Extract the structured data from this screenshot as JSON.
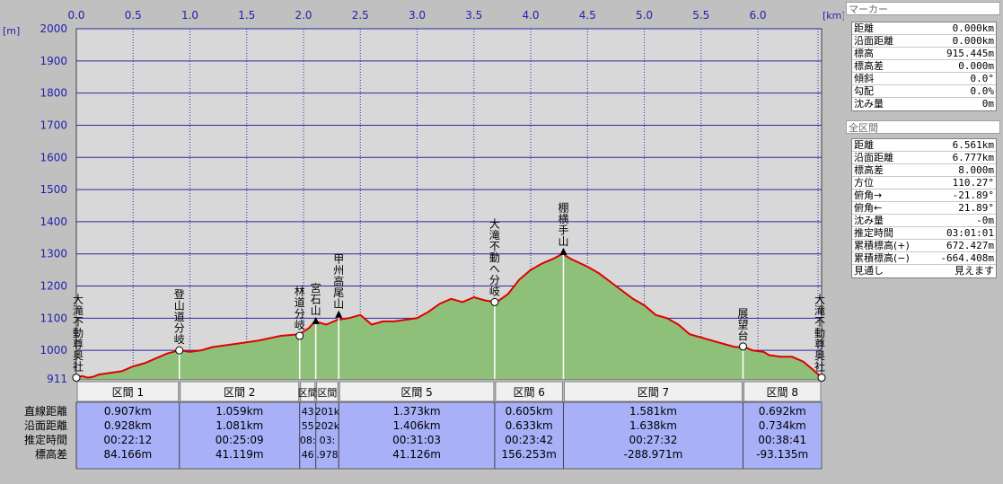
{
  "chart_data": {
    "type": "area",
    "x_unit": "[km]",
    "y_unit": "[m]",
    "xlim": [
      0,
      6.561
    ],
    "ylim": [
      911,
      2000
    ],
    "x_ticks": [
      "0.0",
      "0.5",
      "1.0",
      "1.5",
      "2.0",
      "2.5",
      "3.0",
      "3.5",
      "4.0",
      "4.5",
      "5.0",
      "5.5",
      "6.0"
    ],
    "y_ticks": [
      "2000",
      "1900",
      "1800",
      "1700",
      "1600",
      "1500",
      "1400",
      "1300",
      "1200",
      "1100",
      "1000",
      "911"
    ],
    "profile": [
      [
        0.0,
        915
      ],
      [
        0.05,
        920
      ],
      [
        0.1,
        915
      ],
      [
        0.15,
        918
      ],
      [
        0.2,
        925
      ],
      [
        0.3,
        930
      ],
      [
        0.4,
        935
      ],
      [
        0.5,
        950
      ],
      [
        0.6,
        960
      ],
      [
        0.7,
        975
      ],
      [
        0.8,
        990
      ],
      [
        0.907,
        1000
      ],
      [
        1.0,
        995
      ],
      [
        1.1,
        1000
      ],
      [
        1.2,
        1010
      ],
      [
        1.4,
        1020
      ],
      [
        1.6,
        1030
      ],
      [
        1.8,
        1045
      ],
      [
        1.966,
        1050
      ],
      [
        2.05,
        1070
      ],
      [
        2.1,
        1090
      ],
      [
        2.2,
        1080
      ],
      [
        2.3,
        1095
      ],
      [
        2.4,
        1100
      ],
      [
        2.5,
        1110
      ],
      [
        2.6,
        1080
      ],
      [
        2.7,
        1090
      ],
      [
        2.8,
        1090
      ],
      [
        3.0,
        1100
      ],
      [
        3.1,
        1120
      ],
      [
        3.2,
        1145
      ],
      [
        3.3,
        1160
      ],
      [
        3.4,
        1150
      ],
      [
        3.5,
        1165
      ],
      [
        3.6,
        1155
      ],
      [
        3.7,
        1150
      ],
      [
        3.8,
        1175
      ],
      [
        3.9,
        1220
      ],
      [
        4.0,
        1250
      ],
      [
        4.1,
        1270
      ],
      [
        4.2,
        1285
      ],
      [
        4.28,
        1300
      ],
      [
        4.35,
        1285
      ],
      [
        4.5,
        1260
      ],
      [
        4.6,
        1240
      ],
      [
        4.75,
        1200
      ],
      [
        4.9,
        1160
      ],
      [
        5.0,
        1140
      ],
      [
        5.1,
        1110
      ],
      [
        5.2,
        1100
      ],
      [
        5.3,
        1080
      ],
      [
        5.4,
        1050
      ],
      [
        5.5,
        1040
      ],
      [
        5.6,
        1030
      ],
      [
        5.7,
        1020
      ],
      [
        5.8,
        1010
      ],
      [
        5.882,
        1010
      ],
      [
        5.95,
        1000
      ],
      [
        6.05,
        995
      ],
      [
        6.1,
        985
      ],
      [
        6.2,
        980
      ],
      [
        6.3,
        980
      ],
      [
        6.4,
        965
      ],
      [
        6.5,
        935
      ],
      [
        6.561,
        915
      ]
    ],
    "waypoints": [
      {
        "x": 0.0,
        "y": 915,
        "label": "大滝不動尊奥社",
        "marker": "circle"
      },
      {
        "x": 0.907,
        "y": 1000,
        "label": "登山道分岐",
        "marker": "circle"
      },
      {
        "x": 1.966,
        "y": 1045,
        "label": "林道分岐",
        "marker": "circle"
      },
      {
        "x": 2.108,
        "y": 1090,
        "label": "宮石山",
        "marker": "triangle"
      },
      {
        "x": 2.31,
        "y": 1110,
        "label": "甲州高尾山",
        "marker": "triangle"
      },
      {
        "x": 3.683,
        "y": 1150,
        "label": "大滝不動へ分岐",
        "marker": "circle"
      },
      {
        "x": 4.288,
        "y": 1305,
        "label": "棚横手山",
        "marker": "triangle"
      },
      {
        "x": 5.869,
        "y": 1012,
        "label": "展望台",
        "marker": "circle"
      },
      {
        "x": 6.561,
        "y": 915,
        "label": "大滝不動尊奥社",
        "marker": "circle"
      }
    ],
    "table_row_labels": [
      "直線距離",
      "沿面距離",
      "推定時間",
      "標高差"
    ],
    "segments": [
      {
        "x0": 0.0,
        "x1": 0.907,
        "name": "区間 1",
        "dist": "0.907km",
        "surf": "0.928km",
        "time": "00:22:12",
        "diff": "84.166m"
      },
      {
        "x0": 0.907,
        "x1": 1.966,
        "name": "区間 2",
        "dist": "1.059km",
        "surf": "1.081km",
        "time": "00:25:09",
        "diff": "41.119m"
      },
      {
        "x0": 1.966,
        "x1": 2.108,
        "name": "区間",
        "dist": "43",
        "surf": "55",
        "time": "08:",
        "diff": "46"
      },
      {
        "x0": 2.108,
        "x1": 2.31,
        "name": "区間",
        "dist": "201k",
        "surf": "202k",
        "time": "03:",
        "diff": ".978"
      },
      {
        "x0": 2.31,
        "x1": 3.683,
        "name": "区間 5",
        "dist": "1.373km",
        "surf": "1.406km",
        "time": "00:31:03",
        "diff": "41.126m"
      },
      {
        "x0": 3.683,
        "x1": 4.288,
        "name": "区間 6",
        "dist": "0.605km",
        "surf": "0.633km",
        "time": "00:23:42",
        "diff": "156.253m"
      },
      {
        "x0": 4.288,
        "x1": 5.869,
        "name": "区間 7",
        "dist": "1.581km",
        "surf": "1.638km",
        "time": "00:27:32",
        "diff": "-288.971m"
      },
      {
        "x0": 5.869,
        "x1": 6.561,
        "name": "区間 8",
        "dist": "0.692km",
        "surf": "0.734km",
        "time": "00:38:41",
        "diff": "-93.135m"
      }
    ],
    "colors": {
      "line": "#e00000",
      "fill": "#8fc07a",
      "plot_bg": "#d8d8d8",
      "grid": "#2a2aa8",
      "table": "#a8b0f8",
      "axis_text": "#2222aa"
    }
  },
  "marker_panel": {
    "title": "マーカー",
    "rows": [
      {
        "label": "距離",
        "value": "0.000km"
      },
      {
        "label": "沿面距離",
        "value": "0.000km"
      },
      {
        "label": "標高",
        "value": "915.445m"
      },
      {
        "label": "標高差",
        "value": "0.000m"
      },
      {
        "label": "傾斜",
        "value": "0.0°"
      },
      {
        "label": "勾配",
        "value": "0.0%"
      },
      {
        "label": "沈み量",
        "value": "0m"
      }
    ]
  },
  "total_panel": {
    "title": "全区間",
    "rows": [
      {
        "label": "距離",
        "value": "6.561km"
      },
      {
        "label": "沿面距離",
        "value": "6.777km"
      },
      {
        "label": "標高差",
        "value": "8.000m"
      },
      {
        "label": "方位",
        "value": "110.27°"
      },
      {
        "label": "俯角→",
        "value": "-21.89°"
      },
      {
        "label": "俯角←",
        "value": "21.89°"
      },
      {
        "label": "沈み量",
        "value": "-0m"
      },
      {
        "label": "推定時間",
        "value": "03:01:01"
      },
      {
        "label": "累積標高(+)",
        "value": "672.427m"
      },
      {
        "label": "累積標高(−)",
        "value": "-664.408m"
      },
      {
        "label": "見通し",
        "value": "見えます"
      }
    ]
  }
}
